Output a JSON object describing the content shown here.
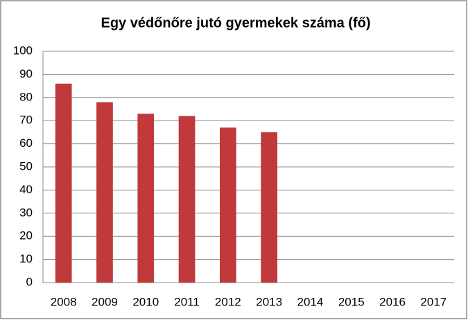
{
  "chart_data": {
    "type": "bar",
    "title": "Egy védőnőre jutó gyermekek száma (fő)",
    "categories": [
      "2008",
      "2009",
      "2010",
      "2011",
      "2012",
      "2013",
      "2014",
      "2015",
      "2016",
      "2017"
    ],
    "values": [
      86,
      78,
      73,
      72,
      67,
      65,
      null,
      null,
      null,
      null
    ],
    "color": "#c0393b",
    "ylim": [
      0,
      100
    ],
    "yticks": [
      0,
      10,
      20,
      30,
      40,
      50,
      60,
      70,
      80,
      90,
      100
    ],
    "grid": true
  }
}
